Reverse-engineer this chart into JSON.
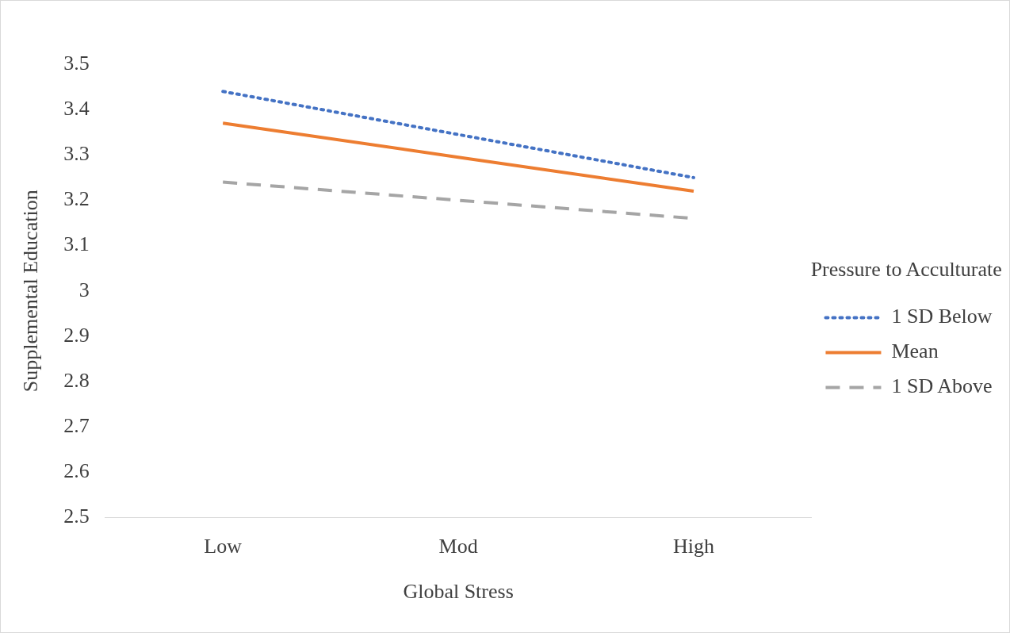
{
  "chart_data": {
    "type": "line",
    "xlabel": "Global Stress",
    "ylabel": "Supplemental Education",
    "legend_title": "Pressure to Acculturate",
    "categories": [
      "Low",
      "Mod",
      "High"
    ],
    "series": [
      {
        "name": "1 SD Below",
        "color": "#4472c4",
        "line_style": "dotted",
        "values": [
          3.44,
          3.345,
          3.25
        ]
      },
      {
        "name": "Mean",
        "color": "#ed7d31",
        "line_style": "solid",
        "values": [
          3.37,
          3.295,
          3.22
        ]
      },
      {
        "name": "1 SD Above",
        "color": "#a5a5a5",
        "line_style": "dashed",
        "values": [
          3.24,
          3.2,
          3.16
        ]
      }
    ],
    "ylim": [
      2.5,
      3.5
    ],
    "yticks": [
      2.5,
      2.6,
      2.7,
      2.8,
      2.9,
      3,
      3.1,
      3.2,
      3.3,
      3.4,
      3.5
    ],
    "grid": false,
    "legend": "right",
    "marker": "none"
  }
}
